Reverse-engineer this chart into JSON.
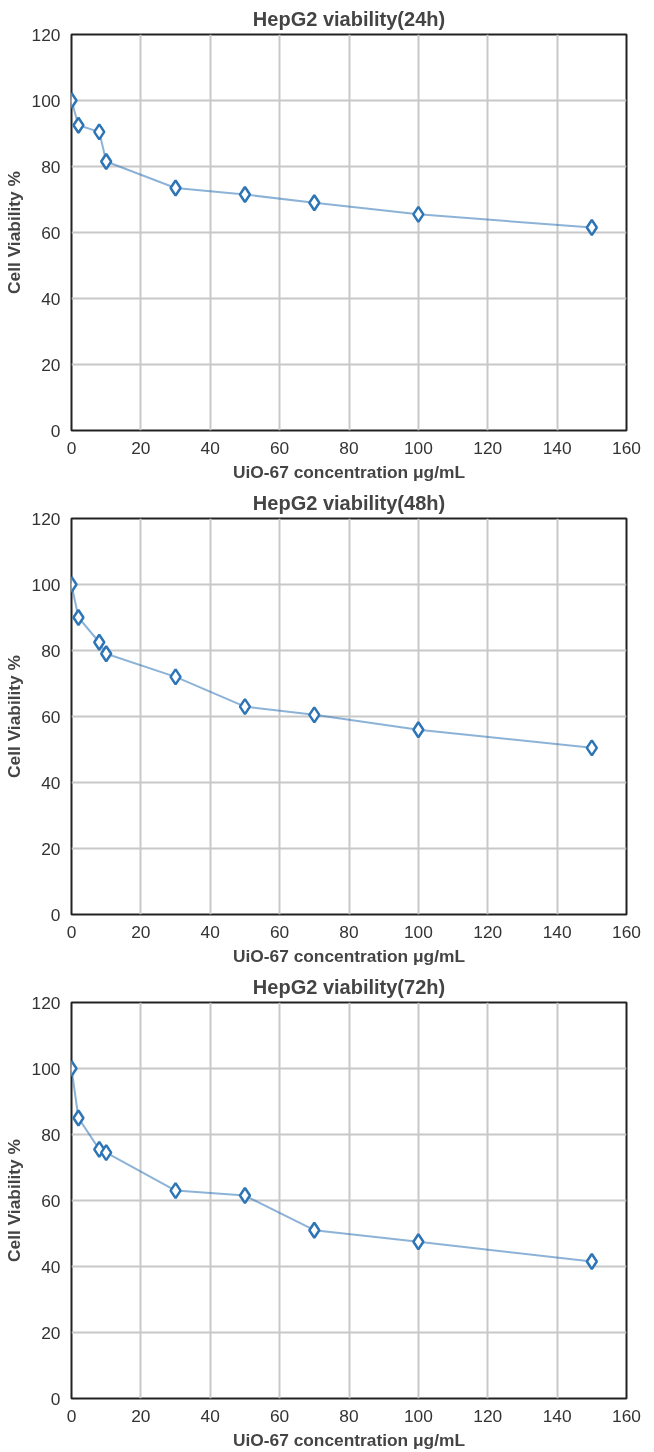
{
  "chart_data": [
    {
      "type": "line",
      "title": "HepG2 viability(24h)",
      "xlabel": "UiO-67 concentration μg/mL",
      "ylabel": "Cell Viability %",
      "x": [
        0,
        2,
        8,
        10,
        30,
        50,
        70,
        100,
        150
      ],
      "series": [
        {
          "color": "#2e75b6",
          "values": [
            100,
            92.5,
            90.5,
            81.5,
            73.5,
            71.5,
            69,
            65.5,
            61.5
          ]
        }
      ],
      "xlim": [
        0,
        160
      ],
      "xticks": [
        0,
        20,
        40,
        60,
        80,
        100,
        120,
        140,
        160
      ],
      "ylim": [
        0,
        120
      ],
      "yticks": [
        0,
        20,
        40,
        60,
        80,
        100,
        120
      ],
      "grid": true,
      "marker": "diamond",
      "line_style": "solid"
    },
    {
      "type": "line",
      "title": "HepG2 viability(48h)",
      "xlabel": "UiO-67 concentration μg/mL",
      "ylabel": "Cell Viability %",
      "x": [
        0,
        2,
        8,
        10,
        30,
        50,
        70,
        100,
        150
      ],
      "series": [
        {
          "color": "#2e75b6",
          "values": [
            100,
            90,
            82.5,
            79,
            72,
            63,
            60.5,
            56,
            50.5
          ]
        }
      ],
      "xlim": [
        0,
        160
      ],
      "xticks": [
        0,
        20,
        40,
        60,
        80,
        100,
        120,
        140,
        160
      ],
      "ylim": [
        0,
        120
      ],
      "yticks": [
        0,
        20,
        40,
        60,
        80,
        100,
        120
      ],
      "grid": true,
      "marker": "diamond",
      "line_style": "solid"
    },
    {
      "type": "line",
      "title": "HepG2 viability(72h)",
      "xlabel": "UiO-67 concentration μg/mL",
      "ylabel": "Cell Viability %",
      "x": [
        0,
        2,
        8,
        10,
        30,
        50,
        70,
        100,
        150
      ],
      "series": [
        {
          "color": "#2e75b6",
          "values": [
            100,
            85,
            75.5,
            74.5,
            63,
            61.5,
            51,
            47.5,
            41.5
          ]
        }
      ],
      "xlim": [
        0,
        160
      ],
      "xticks": [
        0,
        20,
        40,
        60,
        80,
        100,
        120,
        140,
        160
      ],
      "ylim": [
        0,
        120
      ],
      "yticks": [
        0,
        20,
        40,
        60,
        80,
        100,
        120
      ],
      "grid": true,
      "marker": "diamond",
      "line_style": "solid"
    }
  ]
}
